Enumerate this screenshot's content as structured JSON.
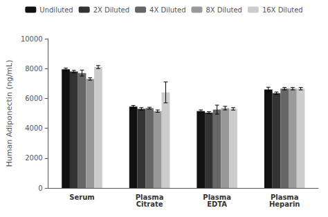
{
  "chart_data": {
    "type": "bar",
    "categories": [
      "Serum",
      "Plasma\nCitrate",
      "Plasma\nEDTA",
      "Plasma\nHeparin"
    ],
    "series": [
      {
        "name": "Undiluted",
        "color": "#111111",
        "values": [
          7950,
          5450,
          5150,
          6600
        ],
        "errors": [
          80,
          80,
          80,
          150
        ]
      },
      {
        "name": "2X Diluted",
        "color": "#333333",
        "values": [
          7800,
          5300,
          5050,
          6350
        ],
        "errors": [
          80,
          80,
          60,
          80
        ]
      },
      {
        "name": "4X Diluted",
        "color": "#666666",
        "values": [
          7700,
          5350,
          5250,
          6650
        ],
        "errors": [
          200,
          60,
          300,
          80
        ]
      },
      {
        "name": "8X Diluted",
        "color": "#999999",
        "values": [
          7300,
          5150,
          5350,
          6650
        ],
        "errors": [
          80,
          80,
          120,
          80
        ]
      },
      {
        "name": "16X Diluted",
        "color": "#cccccc",
        "values": [
          8100,
          6400,
          5300,
          6650
        ],
        "errors": [
          100,
          700,
          80,
          80
        ]
      }
    ],
    "ylabel": "Human Adiponectin (ng/mL)",
    "ylim": [
      0,
      10000
    ],
    "yticks": [
      0,
      2000,
      4000,
      6000,
      8000,
      10000
    ],
    "grid": false,
    "legend": "top"
  }
}
